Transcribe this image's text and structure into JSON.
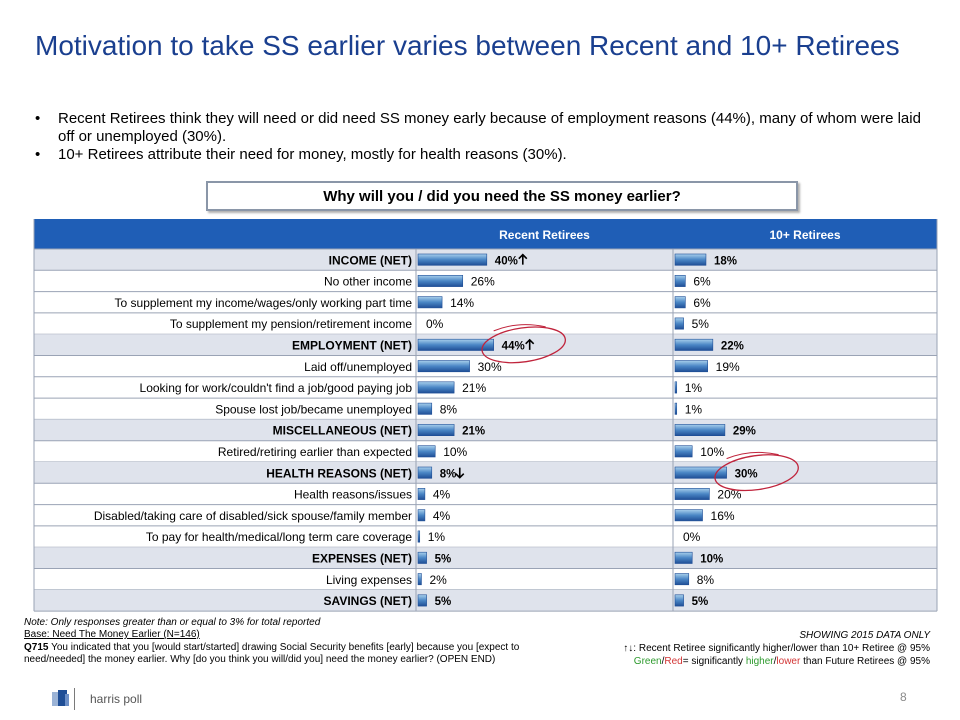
{
  "slide": {
    "title": "Motivation to take SS earlier varies between Recent and 10+ Retirees",
    "bullets": [
      "Recent Retirees think they will need or did need SS money early because of employment reasons (44%), many of whom were laid off or unemployed (30%).",
      "10+ Retirees attribute their need for money, mostly for health reasons (30%)."
    ],
    "question": "Why will you / did you need the SS money earlier?",
    "page_number": "8"
  },
  "chart_data": {
    "type": "bar",
    "orientation": "horizontal",
    "value_suffix": "%",
    "xlim": [
      0,
      100
    ],
    "categories": [
      "INCOME (NET)",
      "No other income",
      "To supplement my income/wages/only working part time",
      "To supplement my pension/retirement income",
      "EMPLOYMENT (NET)",
      "Laid off/unemployed",
      "Looking for work/couldn't find a job/good paying job",
      "Spouse lost job/became unemployed",
      "MISCELLANEOUS (NET)",
      "Retired/retiring earlier than expected",
      "HEALTH REASONS (NET)",
      "Health reasons/issues",
      "Disabled/taking care of disabled/sick spouse/family member",
      "To pay for health/medical/long term care coverage",
      "EXPENSES (NET)",
      "Living expenses",
      "SAVINGS (NET)"
    ],
    "net_rows": [
      true,
      false,
      false,
      false,
      true,
      false,
      false,
      false,
      true,
      false,
      true,
      false,
      false,
      false,
      true,
      false,
      true
    ],
    "series": [
      {
        "name": "Recent Retirees",
        "values": [
          40,
          26,
          14,
          0,
          44,
          30,
          21,
          8,
          21,
          10,
          8,
          4,
          4,
          1,
          5,
          2,
          5
        ],
        "significance": [
          "up",
          "",
          "",
          "",
          "up",
          "",
          "",
          "",
          "",
          "",
          "down",
          "",
          "",
          "",
          "",
          "",
          ""
        ]
      },
      {
        "name": "10+ Retirees",
        "values": [
          18,
          6,
          6,
          5,
          22,
          19,
          1,
          1,
          29,
          10,
          30,
          20,
          16,
          0,
          10,
          8,
          5
        ],
        "significance": [
          "",
          "",
          "",
          "",
          "",
          "",
          "",
          "",
          "",
          "",
          "",
          "",
          "",
          "",
          "",
          "",
          ""
        ]
      }
    ],
    "highlighted": [
      {
        "series": 0,
        "row": 4
      },
      {
        "series": 1,
        "row": 10
      }
    ],
    "colors": {
      "header_bg": "#1f5eb6",
      "header_text": "#ffffff",
      "net_row_bg": "#dfe3ec",
      "bar_dark": "#1f4e96",
      "bar_light": "#a9d0ec",
      "circle": "#c0243c",
      "grid": "#9aa3b5"
    }
  },
  "footnotes": {
    "note": "Note: Only responses greater than or equal to 3% for total reported",
    "base": "Base: Need The Money Earlier (N=146)",
    "question_code": "Q715",
    "question_text": " You indicated that you [would start/started] drawing Social Security benefits [early] because you [expect to need/needed] the money earlier.  Why [do you think you will/did you] need the money earlier? (OPEN END)",
    "showing": "SHOWING 2015 DATA ONLY",
    "legend_arrows": "↑↓",
    "legend_sig": ": Recent Retiree significantly higher/lower than 10+ Retiree @ 95%",
    "legend_green": "Green",
    "legend_slash": "/",
    "legend_red": "Red",
    "legend_mid": "= significantly ",
    "legend_higher": "higher",
    "legend_lower": "lower",
    "legend_end": " than Future Retirees @ 95%"
  },
  "logo": {
    "text": "harris poll"
  }
}
